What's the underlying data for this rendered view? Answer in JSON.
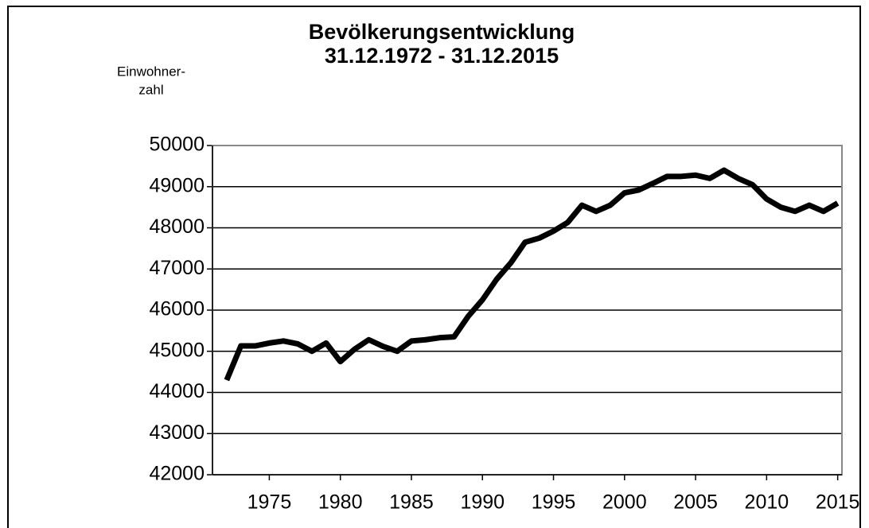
{
  "chart_data": {
    "type": "line",
    "title": "Bevölkerungsentwicklung",
    "subtitle": "31.12.1972 - 31.12.2015",
    "ylabel": [
      "Einwohner-",
      "zahl"
    ],
    "x": [
      1972,
      1973,
      1974,
      1975,
      1976,
      1977,
      1978,
      1979,
      1980,
      1981,
      1982,
      1983,
      1984,
      1985,
      1986,
      1987,
      1988,
      1989,
      1990,
      1991,
      1992,
      1993,
      1994,
      1995,
      1996,
      1997,
      1998,
      1999,
      2000,
      2001,
      2002,
      2003,
      2004,
      2005,
      2006,
      2007,
      2008,
      2009,
      2010,
      2011,
      2012,
      2013,
      2014,
      2015
    ],
    "series": [
      {
        "name": "Einwohnerzahl",
        "color": "#000000",
        "values": [
          44300,
          45130,
          45130,
          45200,
          45250,
          45180,
          45000,
          45200,
          44750,
          45050,
          45280,
          45120,
          45000,
          45250,
          45280,
          45330,
          45350,
          45850,
          46250,
          46750,
          47150,
          47650,
          47750,
          47920,
          48130,
          48550,
          48400,
          48550,
          48850,
          48920,
          49080,
          49250,
          49250,
          49280,
          49200,
          49400,
          49200,
          49050,
          48700,
          48500,
          48400,
          48550,
          48400,
          48600
        ]
      }
    ],
    "xlim": [
      1971,
      2015.3
    ],
    "xticks": [
      1975,
      1980,
      1985,
      1990,
      1995,
      2000,
      2005,
      2010,
      2015
    ],
    "ylim": [
      42000,
      50000
    ],
    "yticks": [
      42000,
      43000,
      44000,
      45000,
      46000,
      47000,
      48000,
      49000,
      50000
    ],
    "grid": true
  }
}
